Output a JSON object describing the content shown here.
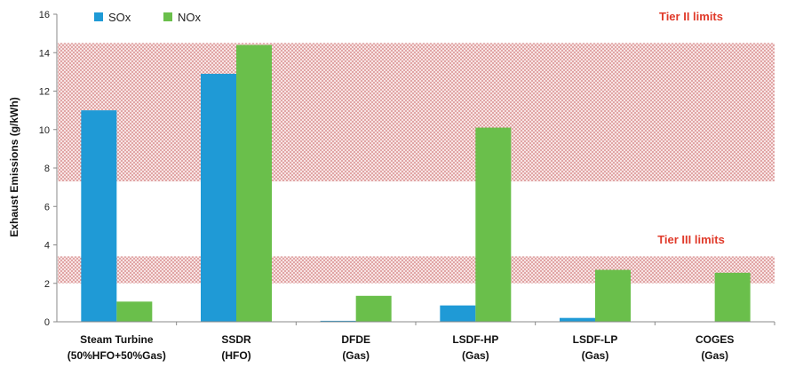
{
  "chart_data": {
    "type": "bar",
    "title": "",
    "xlabel": "",
    "ylabel": "Exhaust Emissions (g/kWh)",
    "ylim": [
      0,
      16
    ],
    "yticks": [
      0,
      2,
      4,
      6,
      8,
      10,
      12,
      14,
      16
    ],
    "grid": false,
    "legend_position": "top-left",
    "categories": [
      [
        "Steam Turbine",
        "(50%HFO+50%Gas)"
      ],
      [
        "SSDR",
        "(HFO)"
      ],
      [
        "DFDE",
        "(Gas)"
      ],
      [
        "LSDF-HP",
        "(Gas)"
      ],
      [
        "LSDF-LP",
        "(Gas)"
      ],
      [
        "COGES",
        "(Gas)"
      ]
    ],
    "series": [
      {
        "name": "SOx",
        "color": "#1f9ad6",
        "values": [
          11.0,
          12.9,
          0.05,
          0.85,
          0.2,
          0.0
        ]
      },
      {
        "name": "NOx",
        "color": "#6abf4b",
        "values": [
          1.05,
          14.4,
          1.35,
          10.1,
          2.7,
          2.55
        ]
      }
    ],
    "bands": [
      {
        "label": "Tier II limits",
        "range": [
          7.3,
          14.5
        ],
        "color": "#e08080",
        "label_color": "#e03a2a"
      },
      {
        "label": "Tier III limits",
        "range": [
          2.0,
          3.4
        ],
        "color": "#e08080",
        "label_color": "#e03a2a"
      }
    ]
  }
}
